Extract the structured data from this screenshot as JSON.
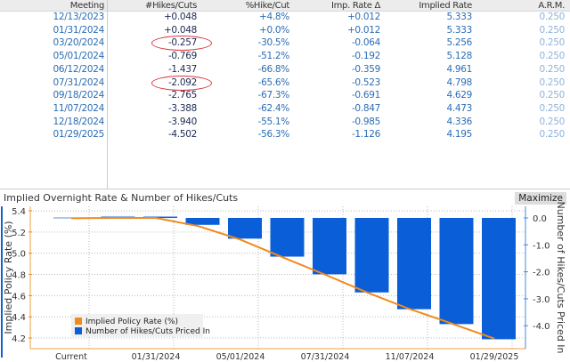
{
  "table": {
    "headers": [
      "Meeting",
      "#Hikes/Cuts",
      "%Hike/Cut",
      "Imp. Rate Δ",
      "Implied Rate",
      "A.R.M."
    ],
    "rows": [
      [
        "12/13/2023",
        "+0.048",
        "+4.8%",
        "+0.012",
        "5.333",
        "0.250"
      ],
      [
        "01/31/2024",
        "+0.048",
        "+0.0%",
        "+0.012",
        "5.333",
        "0.250"
      ],
      [
        "03/20/2024",
        "-0.257",
        "-30.5%",
        "-0.064",
        "5.256",
        "0.250"
      ],
      [
        "05/01/2024",
        "-0.769",
        "-51.2%",
        "-0.192",
        "5.128",
        "0.250"
      ],
      [
        "06/12/2024",
        "-1.437",
        "-66.8%",
        "-0.359",
        "4.961",
        "0.250"
      ],
      [
        "07/31/2024",
        "-2.092",
        "-65.6%",
        "-0.523",
        "4.798",
        "0.250"
      ],
      [
        "09/18/2024",
        "-2.765",
        "-67.3%",
        "-0.691",
        "4.629",
        "0.250"
      ],
      [
        "11/07/2024",
        "-3.388",
        "-62.4%",
        "-0.847",
        "4.473",
        "0.250"
      ],
      [
        "12/18/2024",
        "-3.940",
        "-55.1%",
        "-0.985",
        "4.336",
        "0.250"
      ],
      [
        "01/29/2025",
        "-4.502",
        "-56.3%",
        "-1.126",
        "4.195",
        "0.250"
      ]
    ],
    "highlighted_rows": [
      2,
      5
    ]
  },
  "chart_panel": {
    "title": "Implied Overnight Rate & Number of Hikes/Cuts",
    "maximize_label": "Maximize"
  },
  "chart_data": {
    "type": "bar+line",
    "title": "Implied Overnight Rate & Number of Hikes/Cuts",
    "categories": [
      "Current",
      "12/13/2023",
      "01/31/2024",
      "03/20/2024",
      "05/01/2024",
      "06/12/2024",
      "07/31/2024",
      "09/18/2024",
      "11/07/2024",
      "12/18/2024",
      "01/29/2025"
    ],
    "x_tick_labels": [
      "Current",
      "01/31/2024",
      "05/01/2024",
      "07/31/2024",
      "11/07/2024",
      "01/29/2025"
    ],
    "series": [
      {
        "name": "Implied Policy Rate (%)",
        "type": "line",
        "axis": "left",
        "color": "#f08a1c",
        "values": [
          5.33,
          5.333,
          5.333,
          5.256,
          5.128,
          4.961,
          4.798,
          4.629,
          4.473,
          4.336,
          4.195
        ]
      },
      {
        "name": "Number of Hikes/Cuts Priced In",
        "type": "bar",
        "axis": "right",
        "color": "#0a5fd8",
        "values": [
          0,
          0.048,
          0.048,
          -0.257,
          -0.769,
          -1.437,
          -2.092,
          -2.765,
          -3.388,
          -3.94,
          -4.502
        ]
      }
    ],
    "ylabel": "Implied Policy Rate (%)",
    "ylim": [
      4.15,
      5.45
    ],
    "yticks": [
      "5.4",
      "5.2",
      "5.0",
      "4.8",
      "4.6",
      "4.4",
      "4.2"
    ],
    "y2label": "Number of Hikes/Cuts Priced In",
    "y2ticks": [
      "0.0",
      "-1.0",
      "-2.0",
      "-3.0",
      "-4.0"
    ],
    "grid": true,
    "legend": "bottom-left"
  }
}
